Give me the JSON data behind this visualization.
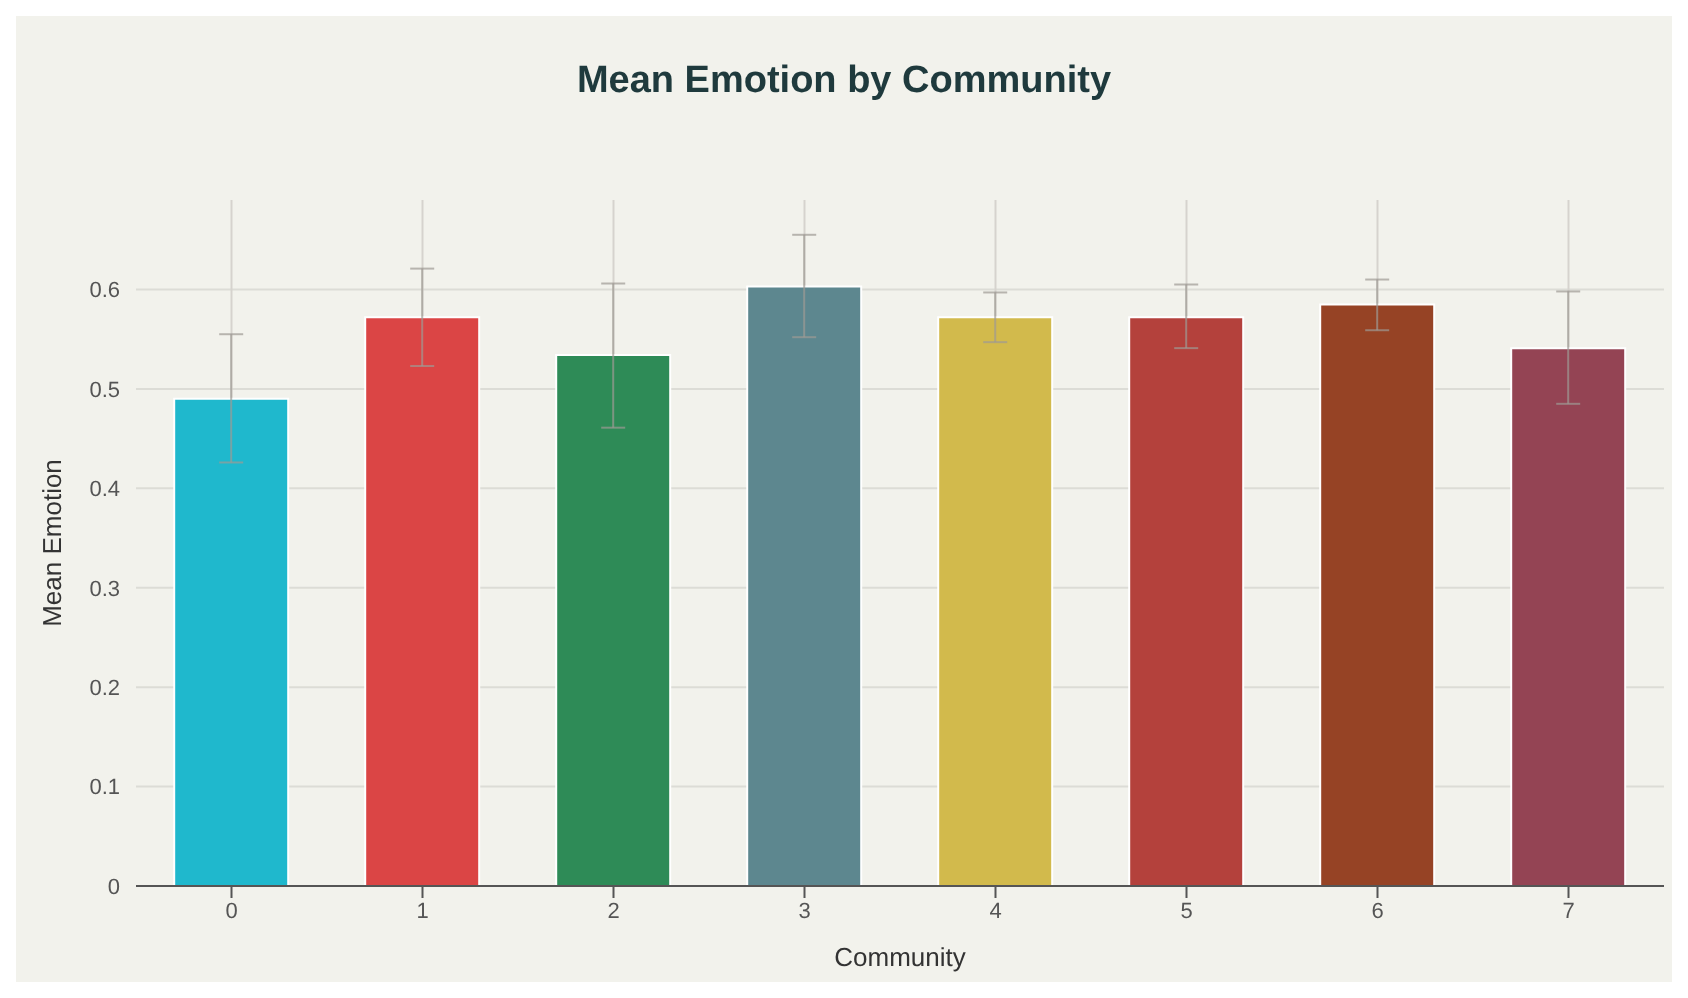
{
  "chart_data": {
    "type": "bar",
    "title": "Mean Emotion by Community",
    "xlabel": "Community",
    "ylabel": "Mean Emotion",
    "categories": [
      "0",
      "1",
      "2",
      "3",
      "4",
      "5",
      "6",
      "7"
    ],
    "values": [
      0.49,
      0.572,
      0.534,
      0.603,
      0.572,
      0.572,
      0.585,
      0.541
    ],
    "colors": [
      "#1fb8cd",
      "#db4545",
      "#2e8b57",
      "#5d878f",
      "#d2ba4c",
      "#b4413c",
      "#964325",
      "#944454"
    ],
    "errors": [
      [
        0.426,
        0.555
      ],
      [
        0.523,
        0.621
      ],
      [
        0.461,
        0.606
      ],
      [
        0.552,
        0.655
      ],
      [
        0.547,
        0.597
      ],
      [
        0.541,
        0.605
      ],
      [
        0.559,
        0.61
      ],
      [
        0.485,
        0.598
      ]
    ],
    "ylim": [
      0,
      0.69
    ],
    "yticks": [
      0,
      0.1,
      0.2,
      0.3,
      0.4,
      0.5,
      0.6
    ],
    "grid": true
  }
}
